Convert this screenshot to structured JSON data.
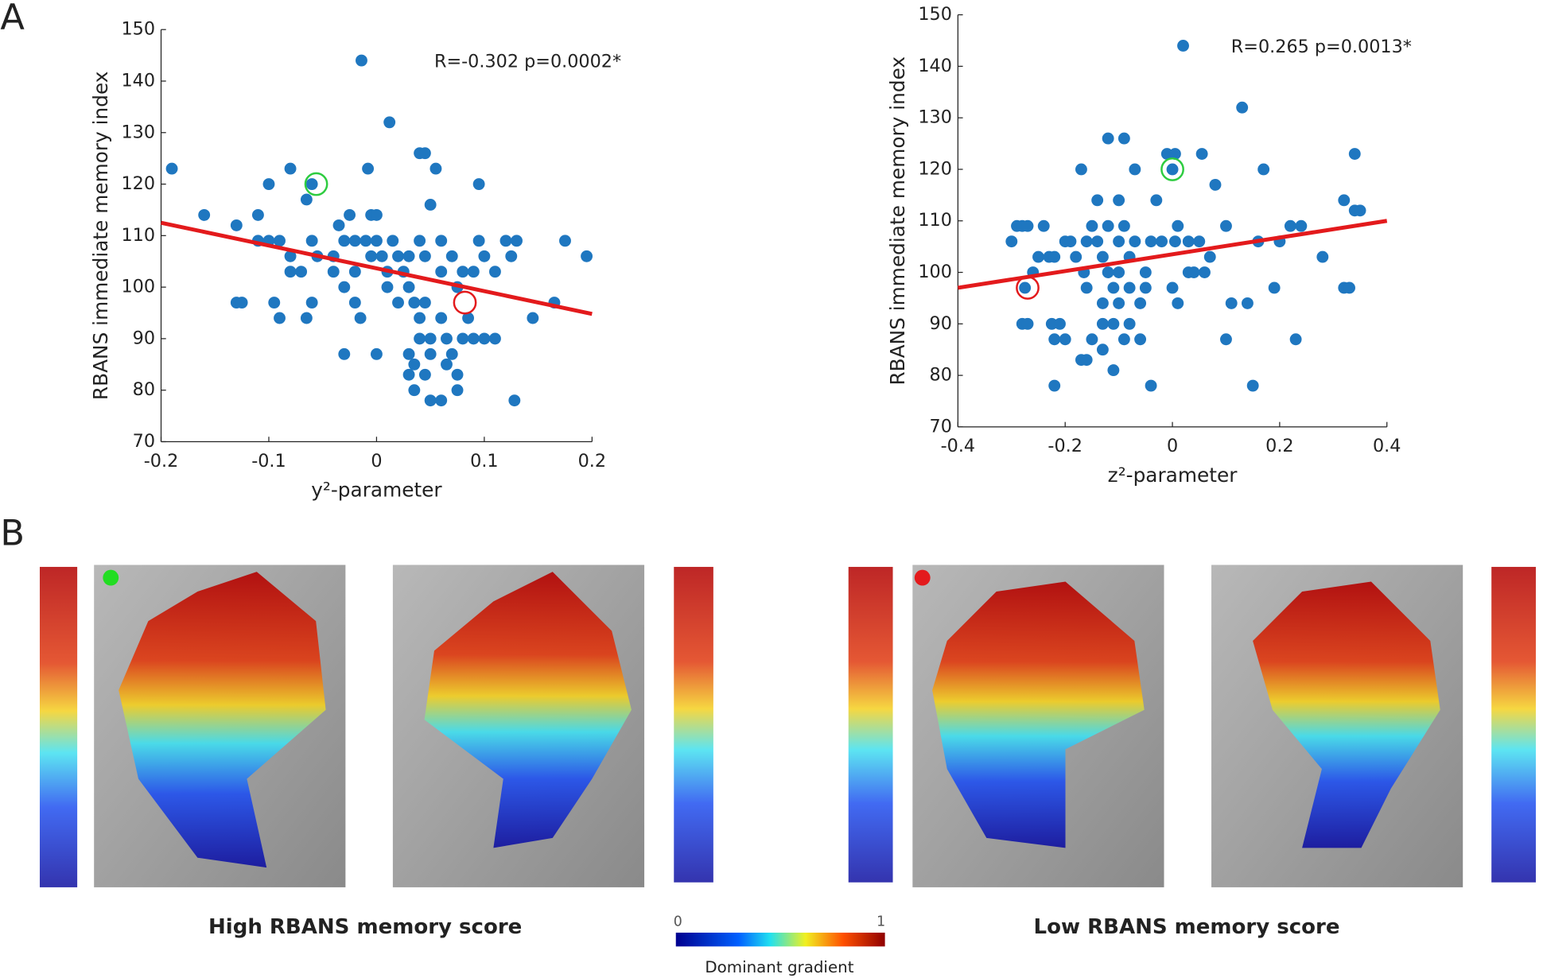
{
  "panel_labels": [
    "A",
    "B"
  ],
  "chart_data": [
    {
      "type": "scatter",
      "xlabel": "y²-parameter",
      "ylabel": "RBANS immediate memory index",
      "annotation": "R=-0.302 p=0.0002*",
      "color": "#1f77c0",
      "x": [
        -0.19,
        -0.16,
        -0.13,
        -0.13,
        -0.125,
        -0.11,
        -0.1,
        -0.11,
        -0.1,
        -0.09,
        -0.095,
        -0.09,
        -0.08,
        -0.08,
        -0.08,
        -0.07,
        -0.065,
        -0.06,
        -0.06,
        -0.055,
        -0.06,
        -0.065,
        -0.04,
        -0.04,
        -0.035,
        -0.03,
        -0.025,
        -0.03,
        -0.03,
        -0.02,
        -0.02,
        -0.02,
        -0.015,
        -0.014,
        -0.01,
        -0.005,
        -0.008,
        -0.005,
        0,
        0,
        0,
        0.005,
        0.01,
        0.012,
        0.01,
        0.015,
        0.02,
        0.025,
        0.03,
        0.035,
        0.04,
        0.045,
        0.05,
        0.055,
        0.04,
        0.045,
        0.045,
        0.04,
        0.04,
        0.03,
        0.035,
        0.03,
        0.035,
        0.045,
        0.05,
        0.05,
        0.05,
        0.06,
        0.06,
        0.06,
        0.06,
        0.065,
        0.065,
        0.07,
        0.075,
        0.075,
        0.08,
        0.08,
        0.085,
        0.09,
        0.09,
        0.095,
        0.1,
        0.1,
        0.095,
        0.11,
        0.11,
        0.12,
        0.125,
        0.13,
        0.128,
        0.145,
        0.165,
        0.175,
        0.195,
        0.02,
        0.03,
        0.07,
        0.075
      ],
      "y": [
        123,
        114,
        112,
        97,
        97,
        114,
        120,
        109,
        109,
        109,
        97,
        94,
        123,
        106,
        103,
        103,
        117,
        120,
        109,
        106,
        97,
        94,
        106,
        103,
        112,
        109,
        114,
        100,
        87,
        109,
        103,
        97,
        94,
        144,
        109,
        106,
        123,
        114,
        114,
        109,
        87,
        106,
        103,
        132,
        100,
        109,
        106,
        103,
        100,
        97,
        126,
        126,
        116,
        123,
        109,
        106,
        97,
        94,
        90,
        87,
        85,
        83,
        80,
        83,
        87,
        90,
        78,
        78,
        109,
        103,
        94,
        90,
        85,
        87,
        83,
        100,
        103,
        90,
        94,
        90,
        103,
        109,
        106,
        90,
        120,
        90,
        103,
        109,
        106,
        109,
        78,
        94,
        97,
        109,
        106,
        97,
        106,
        106,
        80
      ],
      "fit": {
        "color": "#e31a1c",
        "x": [
          -0.2,
          0.2
        ],
        "y": [
          112.5,
          94.8
        ]
      },
      "highlights": [
        {
          "color": "#2ecc40",
          "x": -0.056,
          "y": 120
        },
        {
          "color": "#e31a1c",
          "x": 0.082,
          "y": 97
        }
      ],
      "xlim": [
        -0.2,
        0.2
      ],
      "ylim": [
        70,
        150
      ],
      "xticks": [
        -0.2,
        -0.1,
        0,
        0.1,
        0.2
      ],
      "yticks": [
        70,
        80,
        90,
        100,
        110,
        120,
        130,
        140,
        150
      ]
    },
    {
      "type": "scatter",
      "xlabel": "z²-parameter",
      "ylabel": "RBANS immediate memory index",
      "annotation": "R=0.265 p=0.0013*",
      "color": "#1f77c0",
      "x": [
        -0.3,
        -0.29,
        -0.28,
        -0.27,
        -0.28,
        -0.27,
        -0.275,
        -0.26,
        -0.25,
        -0.24,
        -0.23,
        -0.22,
        -0.22,
        -0.225,
        -0.21,
        -0.22,
        -0.2,
        -0.2,
        -0.19,
        -0.18,
        -0.17,
        -0.16,
        -0.165,
        -0.16,
        -0.17,
        -0.16,
        -0.15,
        -0.15,
        -0.14,
        -0.14,
        -0.13,
        -0.13,
        -0.13,
        -0.13,
        -0.12,
        -0.12,
        -0.12,
        -0.11,
        -0.11,
        -0.11,
        -0.1,
        -0.1,
        -0.1,
        -0.09,
        -0.09,
        -0.09,
        -0.08,
        -0.08,
        -0.08,
        -0.07,
        -0.07,
        -0.06,
        -0.06,
        -0.05,
        -0.04,
        -0.04,
        -0.03,
        -0.02,
        -0.01,
        0,
        0.005,
        0,
        0.01,
        0.005,
        0.01,
        0.02,
        0.03,
        0.03,
        0.04,
        0.05,
        0.055,
        0.07,
        0.08,
        0.1,
        0.1,
        0.11,
        0.13,
        0.14,
        0.15,
        0.16,
        0.17,
        0.19,
        0.2,
        0.22,
        0.23,
        0.24,
        0.28,
        0.32,
        0.32,
        0.33,
        0.34,
        0.34,
        0.35,
        -0.05,
        -0.1,
        0.06
      ],
      "y": [
        106,
        109,
        109,
        109,
        90,
        90,
        97,
        100,
        103,
        109,
        103,
        103,
        87,
        90,
        90,
        78,
        87,
        106,
        106,
        103,
        83,
        83,
        100,
        97,
        120,
        106,
        109,
        87,
        114,
        106,
        103,
        94,
        90,
        85,
        126,
        109,
        100,
        97,
        90,
        81,
        114,
        106,
        94,
        126,
        109,
        87,
        103,
        97,
        90,
        120,
        106,
        94,
        87,
        100,
        78,
        106,
        114,
        106,
        123,
        120,
        106,
        97,
        94,
        123,
        109,
        144,
        106,
        100,
        100,
        106,
        123,
        103,
        117,
        109,
        87,
        94,
        132,
        94,
        78,
        106,
        120,
        97,
        106,
        109,
        87,
        109,
        103,
        114,
        97,
        97,
        123,
        112,
        112,
        97,
        100,
        100
      ],
      "fit": {
        "color": "#e31a1c",
        "x": [
          -0.4,
          0.4
        ],
        "y": [
          97,
          110
        ]
      },
      "highlights": [
        {
          "color": "#2ecc40",
          "x": 0,
          "y": 120
        },
        {
          "color": "#e31a1c",
          "x": -0.27,
          "y": 97
        }
      ],
      "xlim": [
        -0.4,
        0.4
      ],
      "ylim": [
        70,
        150
      ],
      "xticks": [
        -0.4,
        -0.2,
        0,
        0.2,
        0.4
      ],
      "yticks": [
        70,
        80,
        90,
        100,
        110,
        120,
        130,
        140,
        150
      ]
    }
  ],
  "panel_b": {
    "captions": [
      "High RBANS memory score",
      "Low RBANS memory score"
    ],
    "colorbar": {
      "ticks": [
        0,
        1
      ],
      "label": "Dominant gradient"
    }
  }
}
